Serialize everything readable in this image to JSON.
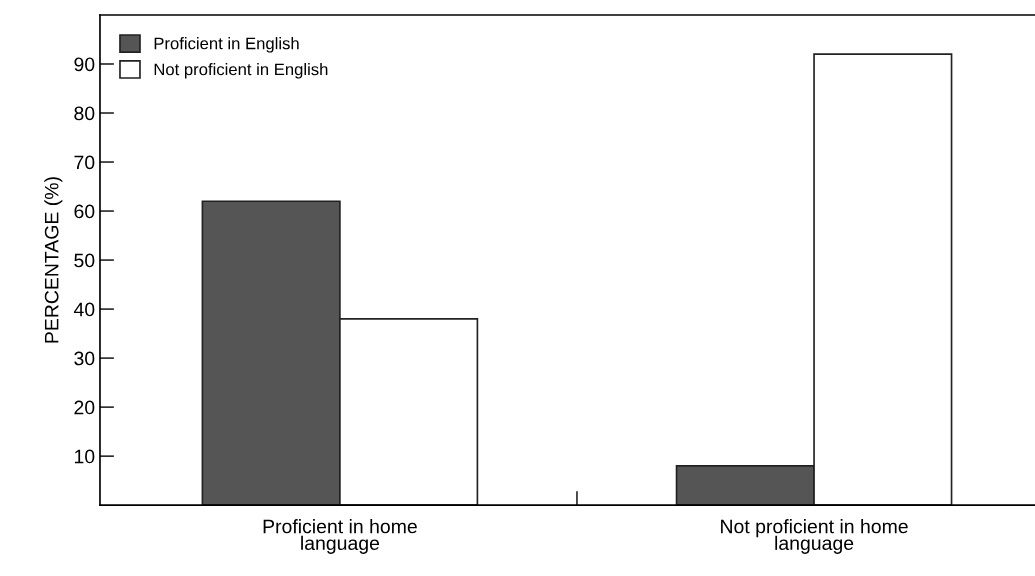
{
  "chart_data": {
    "type": "bar",
    "ylabel": "PERCENTAGE (%)",
    "categories": [
      "Proficient in home language",
      "Not proficient in home language"
    ],
    "series": [
      {
        "name": "Proficient in English",
        "color": "#555555",
        "values": [
          62,
          8
        ]
      },
      {
        "name": "Not proficient in English",
        "color": "#ffffff",
        "values": [
          38,
          92
        ]
      }
    ],
    "ylim": [
      0,
      100
    ],
    "yticks": [
      10,
      20,
      30,
      40,
      50,
      60,
      70,
      80,
      90
    ],
    "legend": "top left",
    "grid": false
  }
}
